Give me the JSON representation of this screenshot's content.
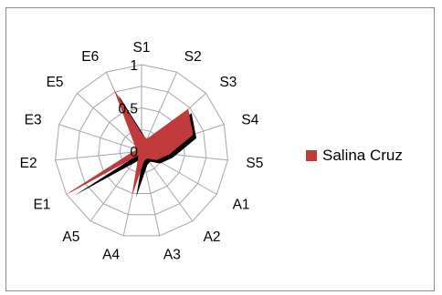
{
  "chart_data": {
    "type": "radar",
    "categories": [
      "S1",
      "S2",
      "S3",
      "S4",
      "S5",
      "A1",
      "A2",
      "A3",
      "A4",
      "A5",
      "E1",
      "E2",
      "E3",
      "E5",
      "E6"
    ],
    "series": [
      {
        "name": "Salina Cruz",
        "color": "#c0393b",
        "values": [
          0.2,
          0.15,
          0.72,
          0.62,
          0.32,
          0.2,
          0.1,
          0.12,
          0.5,
          0.05,
          0.95,
          0.1,
          0.05,
          0.1,
          0.75
        ]
      }
    ],
    "rlim": [
      0,
      1
    ],
    "ticks": [
      {
        "value": 0,
        "label": "0"
      },
      {
        "value": 0.5,
        "label": "0.5"
      },
      {
        "value": 1,
        "label": "1"
      }
    ],
    "shadow": true,
    "legend_position": "right"
  }
}
